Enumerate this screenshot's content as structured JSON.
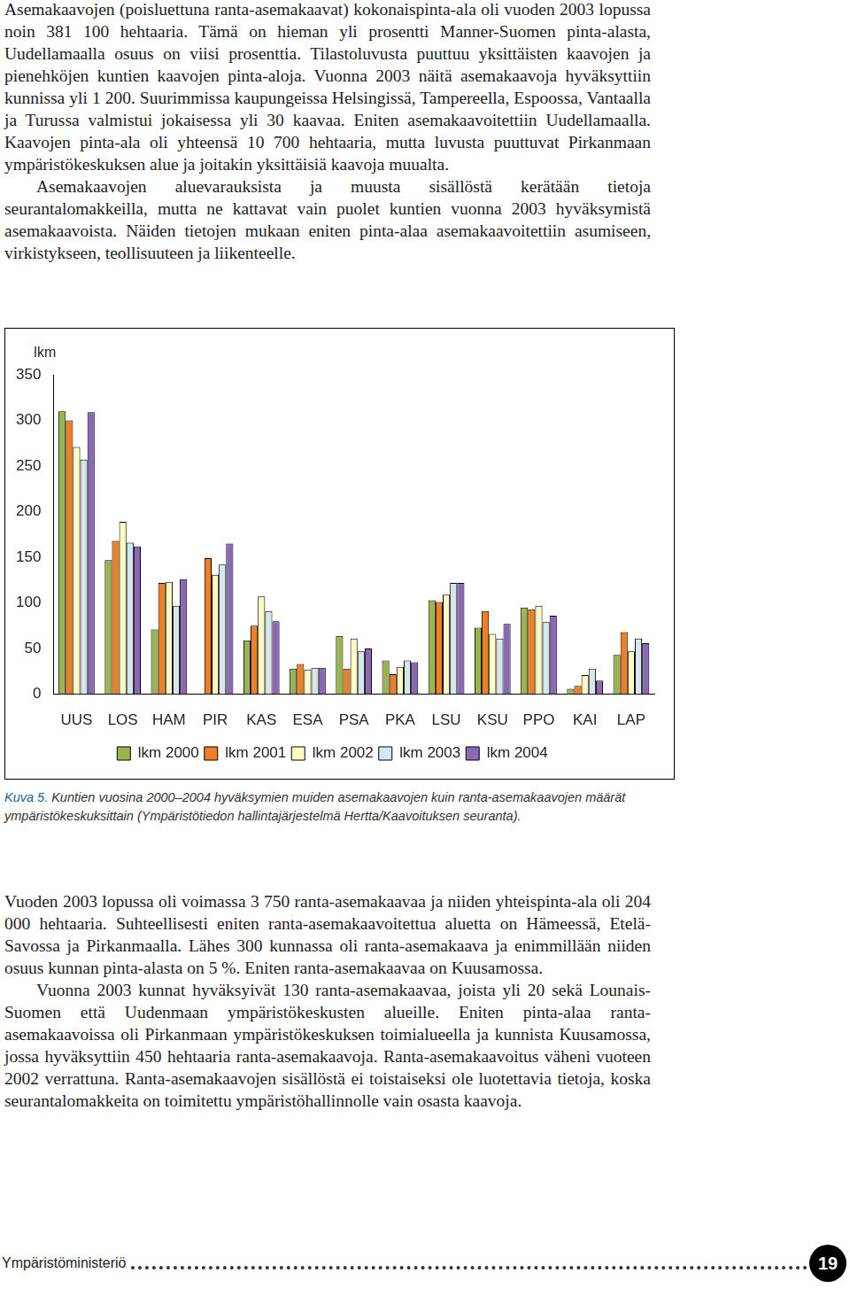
{
  "page": {
    "paragraphs_top": [
      "Asemakaavojen (poisluettuna ranta-asemakaavat) kokonaispinta-ala oli vuoden 2003 lopussa noin 381 100 hehtaaria. Tämä on hieman yli prosentti Manner-Suomen pinta-alasta, Uudellamaalla osuus on viisi prosenttia. Tilastoluvusta puuttuu yksittäisten kaavojen ja pienehköjen kuntien kaavojen pinta-aloja. Vuonna 2003 näitä asemakaavoja hyväksyttiin kunnissa yli 1 200. Suurimmissa kaupungeissa Helsingissä, Tampereella, Espoossa, Vantaalla ja Turussa valmistui jokaisessa yli 30 kaavaa. Eniten asemakaavoitettiin Uudellamaalla. Kaavojen pinta-ala oli yhteensä 10 700 hehtaaria, mutta luvusta puuttuvat Pirkanmaan ympäristökeskuksen alue ja joitakin yksittäisiä kaavoja muualta.",
      "Asemakaavojen aluevarauksista ja muusta sisällöstä kerätään tietoja seurantalomakkeilla, mutta ne kattavat vain puolet kuntien vuonna 2003 hyväksymistä asemakaavoista. Näiden tietojen mukaan eniten pinta-alaa asemakaavoitettiin asumiseen, virkistykseen, teollisuuteen ja liikenteelle."
    ],
    "caption": {
      "label": "Kuva 5.",
      "text": "Kuntien vuosina 2000–2004 hyväksymien muiden asemakaavojen kuin ranta-asemakaavojen määrät ympäristökeskuksittain (Ympäristötiedon hallintajärjestelmä Hertta/Kaavoituksen seuranta)."
    },
    "paragraphs_bottom": [
      "Vuoden 2003 lopussa oli voimassa 3 750 ranta-asemakaavaa ja niiden yhteispinta-ala oli 204 000 hehtaaria. Suhteellisesti eniten ranta-asemakaavoitettua aluetta on Hämeessä, Etelä-Savossa ja Pirkanmaalla. Lähes 300 kunnassa oli ranta-asemakaava ja enimmillään niiden osuus kunnan pinta-alasta on 5 %. Eniten ranta-asemakaavaa on Kuusamossa.",
      "Vuonna 2003 kunnat hyväksyivät 130 ranta-asemakaavaa, joista yli 20 sekä Lounais-Suomen että Uudenmaan ympäristökeskusten alueille. Eniten pinta-alaa ranta-asemakaavoissa oli Pirkanmaan ympäristökeskuksen toimialueella ja kunnista Kuusamossa, jossa hyväksyttiin 450 hehtaaria ranta-asemakaavoja. Ranta-asemakaavoitus väheni vuoteen 2002 verrattuna. Ranta-asemakaavojen sisällöstä ei toistaiseksi ole luotettavia tietoja, koska seurantalomakkeita on toimitettu ympäristöhallinnolle vain osasta kaavoja."
    ],
    "footer": {
      "publisher": "Ympäristöministeriö",
      "page_number": 19
    }
  },
  "chart_data": {
    "type": "bar",
    "y_label": "lkm",
    "categories": [
      "UUS",
      "LOS",
      "HAM",
      "PIR",
      "KAS",
      "ESA",
      "PSA",
      "PKA",
      "LSU",
      "KSU",
      "PPO",
      "KAI",
      "LAP"
    ],
    "series": [
      {
        "name": "lkm 2000",
        "color": "#9bb44e",
        "values": [
          310,
          147,
          71,
          0,
          59,
          28,
          64,
          37,
          103,
          73,
          95,
          6,
          43
        ]
      },
      {
        "name": "lkm 2001",
        "color": "#f07f22",
        "values": [
          300,
          168,
          122,
          149,
          75,
          33,
          28,
          22,
          101,
          91,
          93,
          9,
          68
        ]
      },
      {
        "name": "lkm 2002",
        "color": "#fdfac2",
        "values": [
          271,
          189,
          123,
          131,
          107,
          27,
          61,
          30,
          109,
          66,
          97,
          21,
          47
        ]
      },
      {
        "name": "lkm 2003",
        "color": "#d6e6ec",
        "values": [
          257,
          166,
          97,
          142,
          91,
          29,
          47,
          37,
          122,
          61,
          79,
          28,
          61
        ]
      },
      {
        "name": "lkm 2004",
        "color": "#8a68b4",
        "values": [
          309,
          162,
          126,
          165,
          80,
          29,
          50,
          35,
          122,
          77,
          86,
          15,
          56
        ]
      }
    ],
    "ylim": [
      0,
      350
    ],
    "yticks": [
      0,
      50,
      100,
      150,
      200,
      250,
      300,
      350
    ],
    "grid": false,
    "legend": "bottom"
  }
}
